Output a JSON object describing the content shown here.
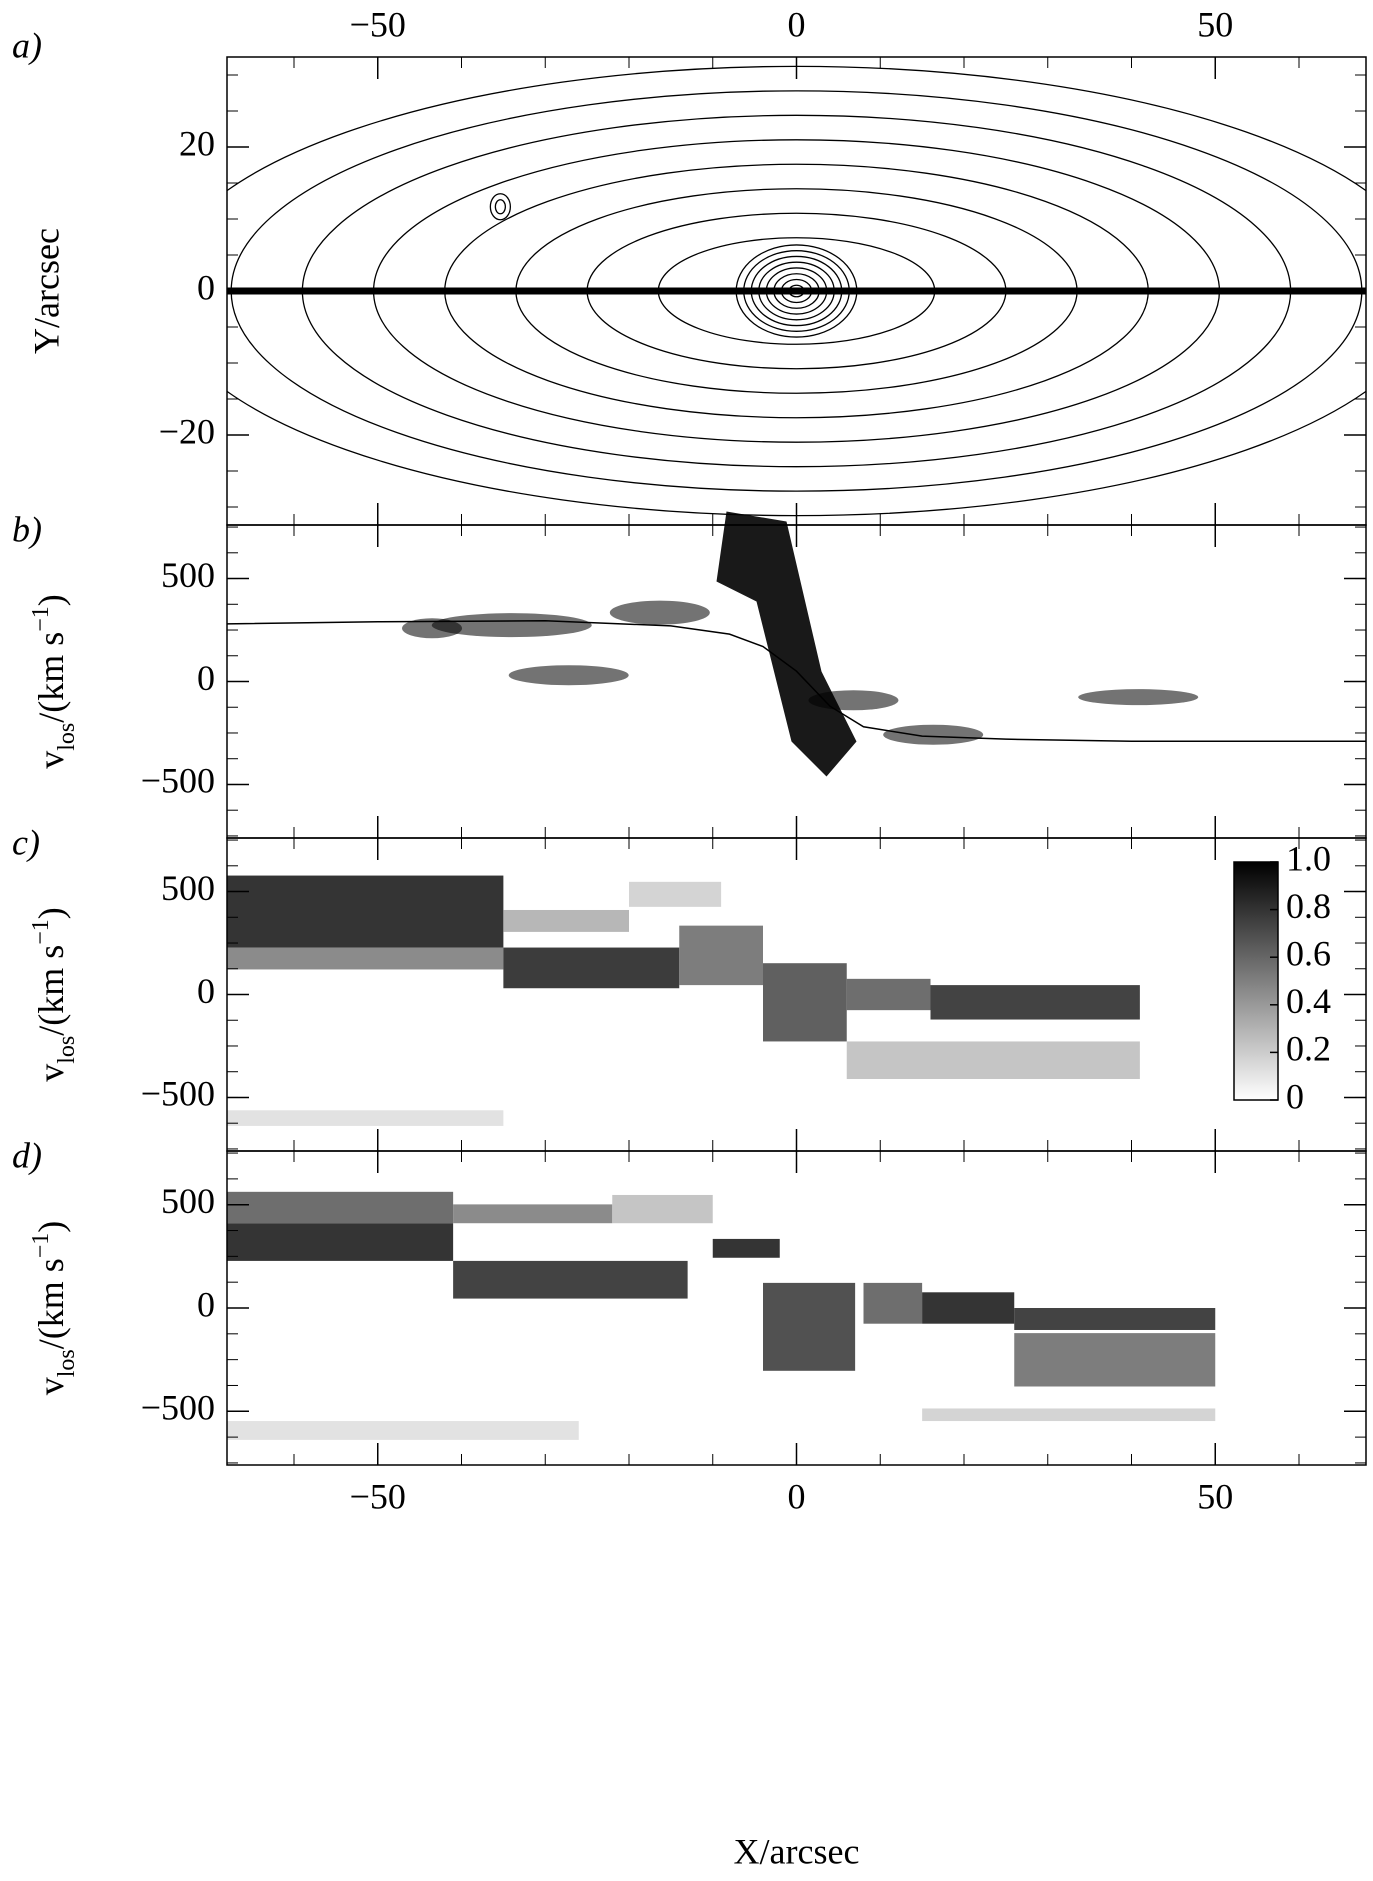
{
  "chart_data": [
    {
      "type": "contour",
      "panel_label": "a)",
      "ylabel": "Y/arcsec",
      "xlim": [
        -68,
        68
      ],
      "xticks": [
        {
          "value": -50,
          "label": "−50"
        },
        0,
        50
      ],
      "ylim": [
        -32.5,
        32.5
      ],
      "yticks": [
        {
          "value": -20,
          "label": "−20"
        },
        0,
        20
      ]
    },
    {
      "type": "line",
      "panel_label": "b)",
      "ylabel_parts": [
        "v",
        "los",
        "/(km s",
        "−1",
        ")"
      ],
      "xlim": [
        -68,
        68
      ],
      "ylim": [
        -760,
        760
      ],
      "yticks": [
        {
          "value": -500,
          "label": "−500"
        },
        0,
        500
      ],
      "x": [
        -68,
        -50,
        -30,
        -15,
        -8,
        -4,
        0,
        4,
        8,
        15,
        25,
        40,
        68
      ],
      "values": [
        280,
        290,
        295,
        270,
        230,
        170,
        50,
        -120,
        -220,
        -265,
        -280,
        -290,
        -290
      ],
      "color": "#000000"
    },
    {
      "type": "image",
      "panel_label": "c)",
      "ylabel_parts": [
        "v",
        "los",
        "/(km s",
        "−1",
        ")"
      ],
      "xlim": [
        -68,
        68
      ],
      "ylim": [
        -760,
        760
      ],
      "yticks": [
        {
          "value": -500,
          "label": "−500"
        },
        0,
        500
      ],
      "colorbar": {
        "lim": [
          0,
          1
        ],
        "ticks": [
          0,
          0.2,
          0.4,
          0.6,
          0.8,
          {
            "value": 1,
            "label": "1.0"
          }
        ]
      }
    },
    {
      "type": "image",
      "panel_label": "d)",
      "ylabel_parts": [
        "v",
        "los",
        "/(km s",
        "−1",
        ")"
      ],
      "xlim": [
        -68,
        68
      ],
      "xticks": [
        {
          "value": -50,
          "label": "−50"
        },
        0,
        50
      ],
      "xlabel": "X/arcsec",
      "ylim": [
        -760,
        760
      ],
      "yticks": [
        {
          "value": -500,
          "label": "−500"
        },
        0,
        500
      ]
    }
  ]
}
